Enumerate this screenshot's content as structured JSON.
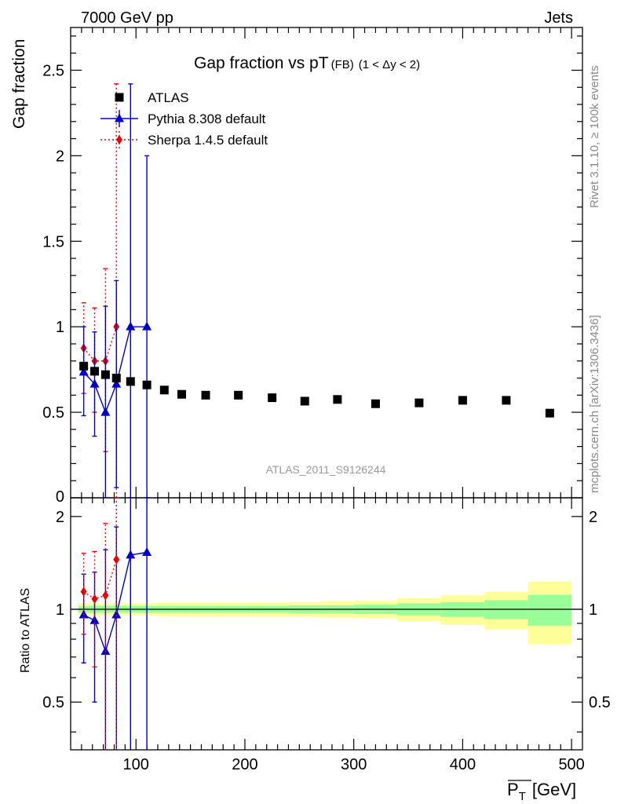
{
  "header": {
    "left": "7000 GeV pp",
    "right": "Jets"
  },
  "side_labels": {
    "rivet": "Rivet 3.1.10, ≥ 100k events",
    "mcplots": "mcplots.cern.ch [arXiv:1306.3436]"
  },
  "watermark": "ATLAS_2011_S9126244",
  "chart_data": {
    "type": "scatter",
    "title": "Gap fraction vs pT",
    "title_sub": "(FB)",
    "title_range": "(1 < Δy < 2)",
    "xlabel": "P",
    "xlabel_sub": "T",
    "xlabel_unit": "[GeV]",
    "ylabel_main": "Gap fraction",
    "ylabel_ratio": "Ratio to ATLAS",
    "xlim": [
      40,
      510
    ],
    "ylim_main": [
      0,
      2.75
    ],
    "ylim_ratio": [
      0.35,
      2.3
    ],
    "x_ticks": [
      100,
      200,
      300,
      400,
      500
    ],
    "y_ticks_main": [
      0.5,
      1,
      1.5,
      2,
      2.5
    ],
    "y_tick_labels_main": [
      "0.5",
      "1",
      "1.5",
      "2",
      "2.5"
    ],
    "y_ticks_ratio": [
      0.5,
      1,
      2
    ],
    "y_tick_labels_ratio": [
      "0.5",
      "1",
      "2"
    ],
    "bottom_tick_label_main": "0",
    "legend_position": "top-left",
    "series": [
      {
        "name": "ATLAS",
        "color": "#000000",
        "marker": "square",
        "points": [
          {
            "x": 52,
            "y": 0.77,
            "lo": 0.77,
            "hi": 0.77
          },
          {
            "x": 62,
            "y": 0.74,
            "lo": 0.74,
            "hi": 0.74
          },
          {
            "x": 72,
            "y": 0.72,
            "lo": 0.72,
            "hi": 0.72
          },
          {
            "x": 82,
            "y": 0.7,
            "lo": 0.7,
            "hi": 0.7
          },
          {
            "x": 95,
            "y": 0.68,
            "lo": 0.68,
            "hi": 0.68
          },
          {
            "x": 110,
            "y": 0.66,
            "lo": 0.66,
            "hi": 0.66
          },
          {
            "x": 126,
            "y": 0.63,
            "lo": 0.63,
            "hi": 0.63
          },
          {
            "x": 142,
            "y": 0.605,
            "lo": 0.605,
            "hi": 0.605
          },
          {
            "x": 164,
            "y": 0.6,
            "lo": 0.6,
            "hi": 0.6
          },
          {
            "x": 194,
            "y": 0.6,
            "lo": 0.6,
            "hi": 0.6
          },
          {
            "x": 225,
            "y": 0.585,
            "lo": 0.585,
            "hi": 0.585
          },
          {
            "x": 255,
            "y": 0.565,
            "lo": 0.565,
            "hi": 0.565
          },
          {
            "x": 285,
            "y": 0.575,
            "lo": 0.575,
            "hi": 0.575
          },
          {
            "x": 320,
            "y": 0.55,
            "lo": 0.55,
            "hi": 0.55
          },
          {
            "x": 360,
            "y": 0.555,
            "lo": 0.555,
            "hi": 0.555
          },
          {
            "x": 400,
            "y": 0.57,
            "lo": 0.57,
            "hi": 0.57
          },
          {
            "x": 440,
            "y": 0.57,
            "lo": 0.57,
            "hi": 0.57
          },
          {
            "x": 480,
            "y": 0.495,
            "lo": 0.495,
            "hi": 0.495
          }
        ]
      },
      {
        "name": "Pythia 8.308 default",
        "color": "#0000cc",
        "marker": "triangle",
        "points": [
          {
            "x": 52,
            "y": 0.735,
            "lo": 0.48,
            "hi": 1.0
          },
          {
            "x": 62,
            "y": 0.665,
            "lo": 0.36,
            "hi": 0.97
          },
          {
            "x": 72,
            "y": 0.5,
            "lo": 0.0,
            "hi": 1.12
          },
          {
            "x": 82,
            "y": 0.665,
            "lo": 0.06,
            "hi": 1.27
          },
          {
            "x": 95,
            "y": 1.0,
            "lo": 0.0,
            "hi": 2.42
          },
          {
            "x": 110,
            "y": 1.0,
            "lo": 0.0,
            "hi": 2.0
          }
        ]
      },
      {
        "name": "Sherpa 1.4.5 default",
        "color": "#ee0000",
        "marker": "diamond",
        "points": [
          {
            "x": 52,
            "y": 0.875,
            "lo": 0.61,
            "hi": 1.14
          },
          {
            "x": 62,
            "y": 0.8,
            "lo": 0.5,
            "hi": 1.11
          },
          {
            "x": 72,
            "y": 0.8,
            "lo": 0.27,
            "hi": 1.34
          },
          {
            "x": 82,
            "y": 1.0,
            "lo": 0.0,
            "hi": 2.42
          }
        ]
      }
    ],
    "ratio_series": [
      {
        "name": "Pythia 8.308 default",
        "points": [
          {
            "x": 52,
            "y": 0.96,
            "lo": 0.67,
            "hi": 1.3
          },
          {
            "x": 62,
            "y": 0.92,
            "lo": 0.5,
            "hi": 1.32
          },
          {
            "x": 72,
            "y": 0.73,
            "lo": 0.0,
            "hi": 1.56
          },
          {
            "x": 82,
            "y": 0.96,
            "lo": 0.0,
            "hi": 1.85
          },
          {
            "x": 95,
            "y": 1.5,
            "lo": 0.0,
            "hi": 3.0
          },
          {
            "x": 110,
            "y": 1.53,
            "lo": 0.0,
            "hi": 3.0
          }
        ]
      },
      {
        "name": "Sherpa 1.4.5 default",
        "points": [
          {
            "x": 52,
            "y": 1.14,
            "lo": 0.83,
            "hi": 1.52
          },
          {
            "x": 62,
            "y": 1.08,
            "lo": 0.65,
            "hi": 1.54
          },
          {
            "x": 72,
            "y": 1.11,
            "lo": 0.35,
            "hi": 1.9
          },
          {
            "x": 82,
            "y": 1.45,
            "lo": 0.0,
            "hi": 3.0
          }
        ]
      }
    ],
    "ratio_bands": [
      {
        "x0": 47,
        "x1": 57,
        "green": [
          0.975,
          1.025
        ],
        "yellow": [
          0.955,
          1.045
        ]
      },
      {
        "x0": 57,
        "x1": 67,
        "green": [
          0.975,
          1.025
        ],
        "yellow": [
          0.955,
          1.045
        ]
      },
      {
        "x0": 67,
        "x1": 77,
        "green": [
          0.975,
          1.025
        ],
        "yellow": [
          0.955,
          1.045
        ]
      },
      {
        "x0": 77,
        "x1": 87,
        "green": [
          0.975,
          1.025
        ],
        "yellow": [
          0.955,
          1.045
        ]
      },
      {
        "x0": 87,
        "x1": 102,
        "green": [
          0.975,
          1.025
        ],
        "yellow": [
          0.955,
          1.045
        ]
      },
      {
        "x0": 102,
        "x1": 118,
        "green": [
          0.975,
          1.025
        ],
        "yellow": [
          0.955,
          1.045
        ]
      },
      {
        "x0": 118,
        "x1": 134,
        "green": [
          0.975,
          1.025
        ],
        "yellow": [
          0.95,
          1.05
        ]
      },
      {
        "x0": 134,
        "x1": 150,
        "green": [
          0.975,
          1.025
        ],
        "yellow": [
          0.95,
          1.05
        ]
      },
      {
        "x0": 150,
        "x1": 179,
        "green": [
          0.975,
          1.025
        ],
        "yellow": [
          0.95,
          1.05
        ]
      },
      {
        "x0": 179,
        "x1": 210,
        "green": [
          0.975,
          1.025
        ],
        "yellow": [
          0.95,
          1.05
        ]
      },
      {
        "x0": 210,
        "x1": 240,
        "green": [
          0.975,
          1.025
        ],
        "yellow": [
          0.95,
          1.05
        ]
      },
      {
        "x0": 240,
        "x1": 270,
        "green": [
          0.97,
          1.03
        ],
        "yellow": [
          0.945,
          1.055
        ]
      },
      {
        "x0": 270,
        "x1": 300,
        "green": [
          0.97,
          1.03
        ],
        "yellow": [
          0.94,
          1.06
        ]
      },
      {
        "x0": 300,
        "x1": 340,
        "green": [
          0.965,
          1.035
        ],
        "yellow": [
          0.935,
          1.065
        ]
      },
      {
        "x0": 340,
        "x1": 380,
        "green": [
          0.955,
          1.045
        ],
        "yellow": [
          0.915,
          1.085
        ]
      },
      {
        "x0": 380,
        "x1": 420,
        "green": [
          0.945,
          1.055
        ],
        "yellow": [
          0.89,
          1.11
        ]
      },
      {
        "x0": 420,
        "x1": 460,
        "green": [
          0.93,
          1.07
        ],
        "yellow": [
          0.86,
          1.14
        ]
      },
      {
        "x0": 460,
        "x1": 500,
        "green": [
          0.885,
          1.115
        ],
        "yellow": [
          0.77,
          1.23
        ]
      }
    ]
  }
}
